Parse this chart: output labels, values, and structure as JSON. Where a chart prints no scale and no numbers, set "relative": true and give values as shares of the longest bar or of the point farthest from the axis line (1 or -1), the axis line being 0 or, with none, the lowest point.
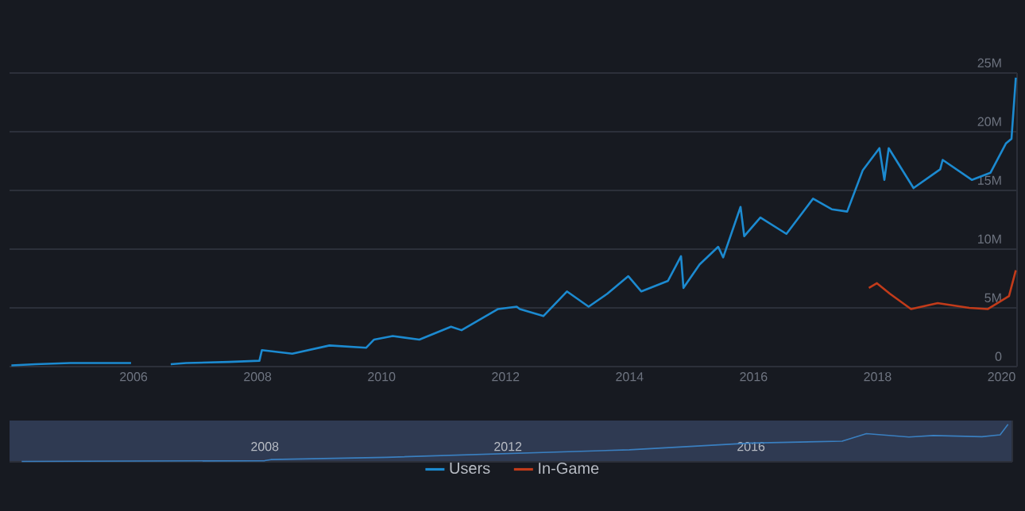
{
  "chart_data": [
    {
      "type": "line",
      "xlim": [
        2004.0,
        2020.25
      ],
      "xticks": [
        2006,
        2008,
        2010,
        2012,
        2014,
        2016,
        2018,
        2020
      ],
      "ylim": [
        0,
        25
      ],
      "yticks": [
        {
          "value": 0,
          "label": "0"
        },
        {
          "value": 5,
          "label": "5M"
        },
        {
          "value": 10,
          "label": "10M"
        },
        {
          "value": 15,
          "label": "15M"
        },
        {
          "value": 20,
          "label": "20M"
        },
        {
          "value": 25,
          "label": "25M"
        }
      ],
      "grid": "y",
      "legend": "bottom",
      "line_style": "solid",
      "series": [
        {
          "name": "Users",
          "color": "#1c8ad0",
          "x": [
            2004.03,
            2004.42,
            2004.98,
            2005.96,
            2006.3,
            2006.6,
            2006.85,
            2007.54,
            2008.03,
            2008.07,
            2008.56,
            2009.16,
            2009.75,
            2009.88,
            2010.18,
            2010.61,
            2011.12,
            2011.29,
            2011.88,
            2012.18,
            2012.23,
            2012.61,
            2012.99,
            2013.34,
            2013.64,
            2013.98,
            2014.19,
            2014.62,
            2014.83,
            2014.87,
            2015.13,
            2015.43,
            2015.51,
            2015.79,
            2015.85,
            2016.11,
            2016.53,
            2016.96,
            2017.26,
            2017.51,
            2017.76,
            2018.03,
            2018.11,
            2018.18,
            2018.58,
            2019.01,
            2019.05,
            2019.52,
            2019.82,
            2020.07,
            2020.16,
            2020.23
          ],
          "values": [
            0.1,
            0.2,
            0.3,
            0.3,
            null,
            0.2,
            0.3,
            0.4,
            0.5,
            1.4,
            1.1,
            1.8,
            1.6,
            2.3,
            2.6,
            2.3,
            3.4,
            3.1,
            4.9,
            5.1,
            4.9,
            4.3,
            6.4,
            5.1,
            6.2,
            7.7,
            6.4,
            7.3,
            9.4,
            6.7,
            8.7,
            10.2,
            9.3,
            13.6,
            11.1,
            12.7,
            11.3,
            14.3,
            13.4,
            13.2,
            16.7,
            18.6,
            15.9,
            18.6,
            15.2,
            16.8,
            17.6,
            15.9,
            16.5,
            19.0,
            19.4,
            24.6
          ]
        },
        {
          "name": "In-Game",
          "color": "#c23b1a",
          "x": [
            2017.86,
            2017.99,
            2018.2,
            2018.54,
            2018.97,
            2019.48,
            2019.78,
            2020.12,
            2020.23
          ],
          "values": [
            6.7,
            7.1,
            6.2,
            4.9,
            5.4,
            5.0,
            4.9,
            6.0,
            8.2
          ]
        }
      ]
    },
    {
      "type": "line",
      "relative": true,
      "xlim": [
        2003.8,
        2020.3
      ],
      "xticks": [
        2008,
        2012,
        2016
      ],
      "tick_labels": "x",
      "series": [
        {
          "color": "#3a7fc0",
          "x": [
            2004.0,
            2006.0,
            2008.0,
            2008.1,
            2010.0,
            2012.0,
            2014.0,
            2016.0,
            2017.5,
            2017.9,
            2018.6,
            2019.0,
            2019.8,
            2020.1,
            2020.23
          ],
          "values": [
            0.01,
            0.02,
            0.03,
            0.06,
            0.12,
            0.22,
            0.32,
            0.5,
            0.55,
            0.75,
            0.66,
            0.7,
            0.67,
            0.72,
            1.0
          ]
        }
      ]
    }
  ]
}
